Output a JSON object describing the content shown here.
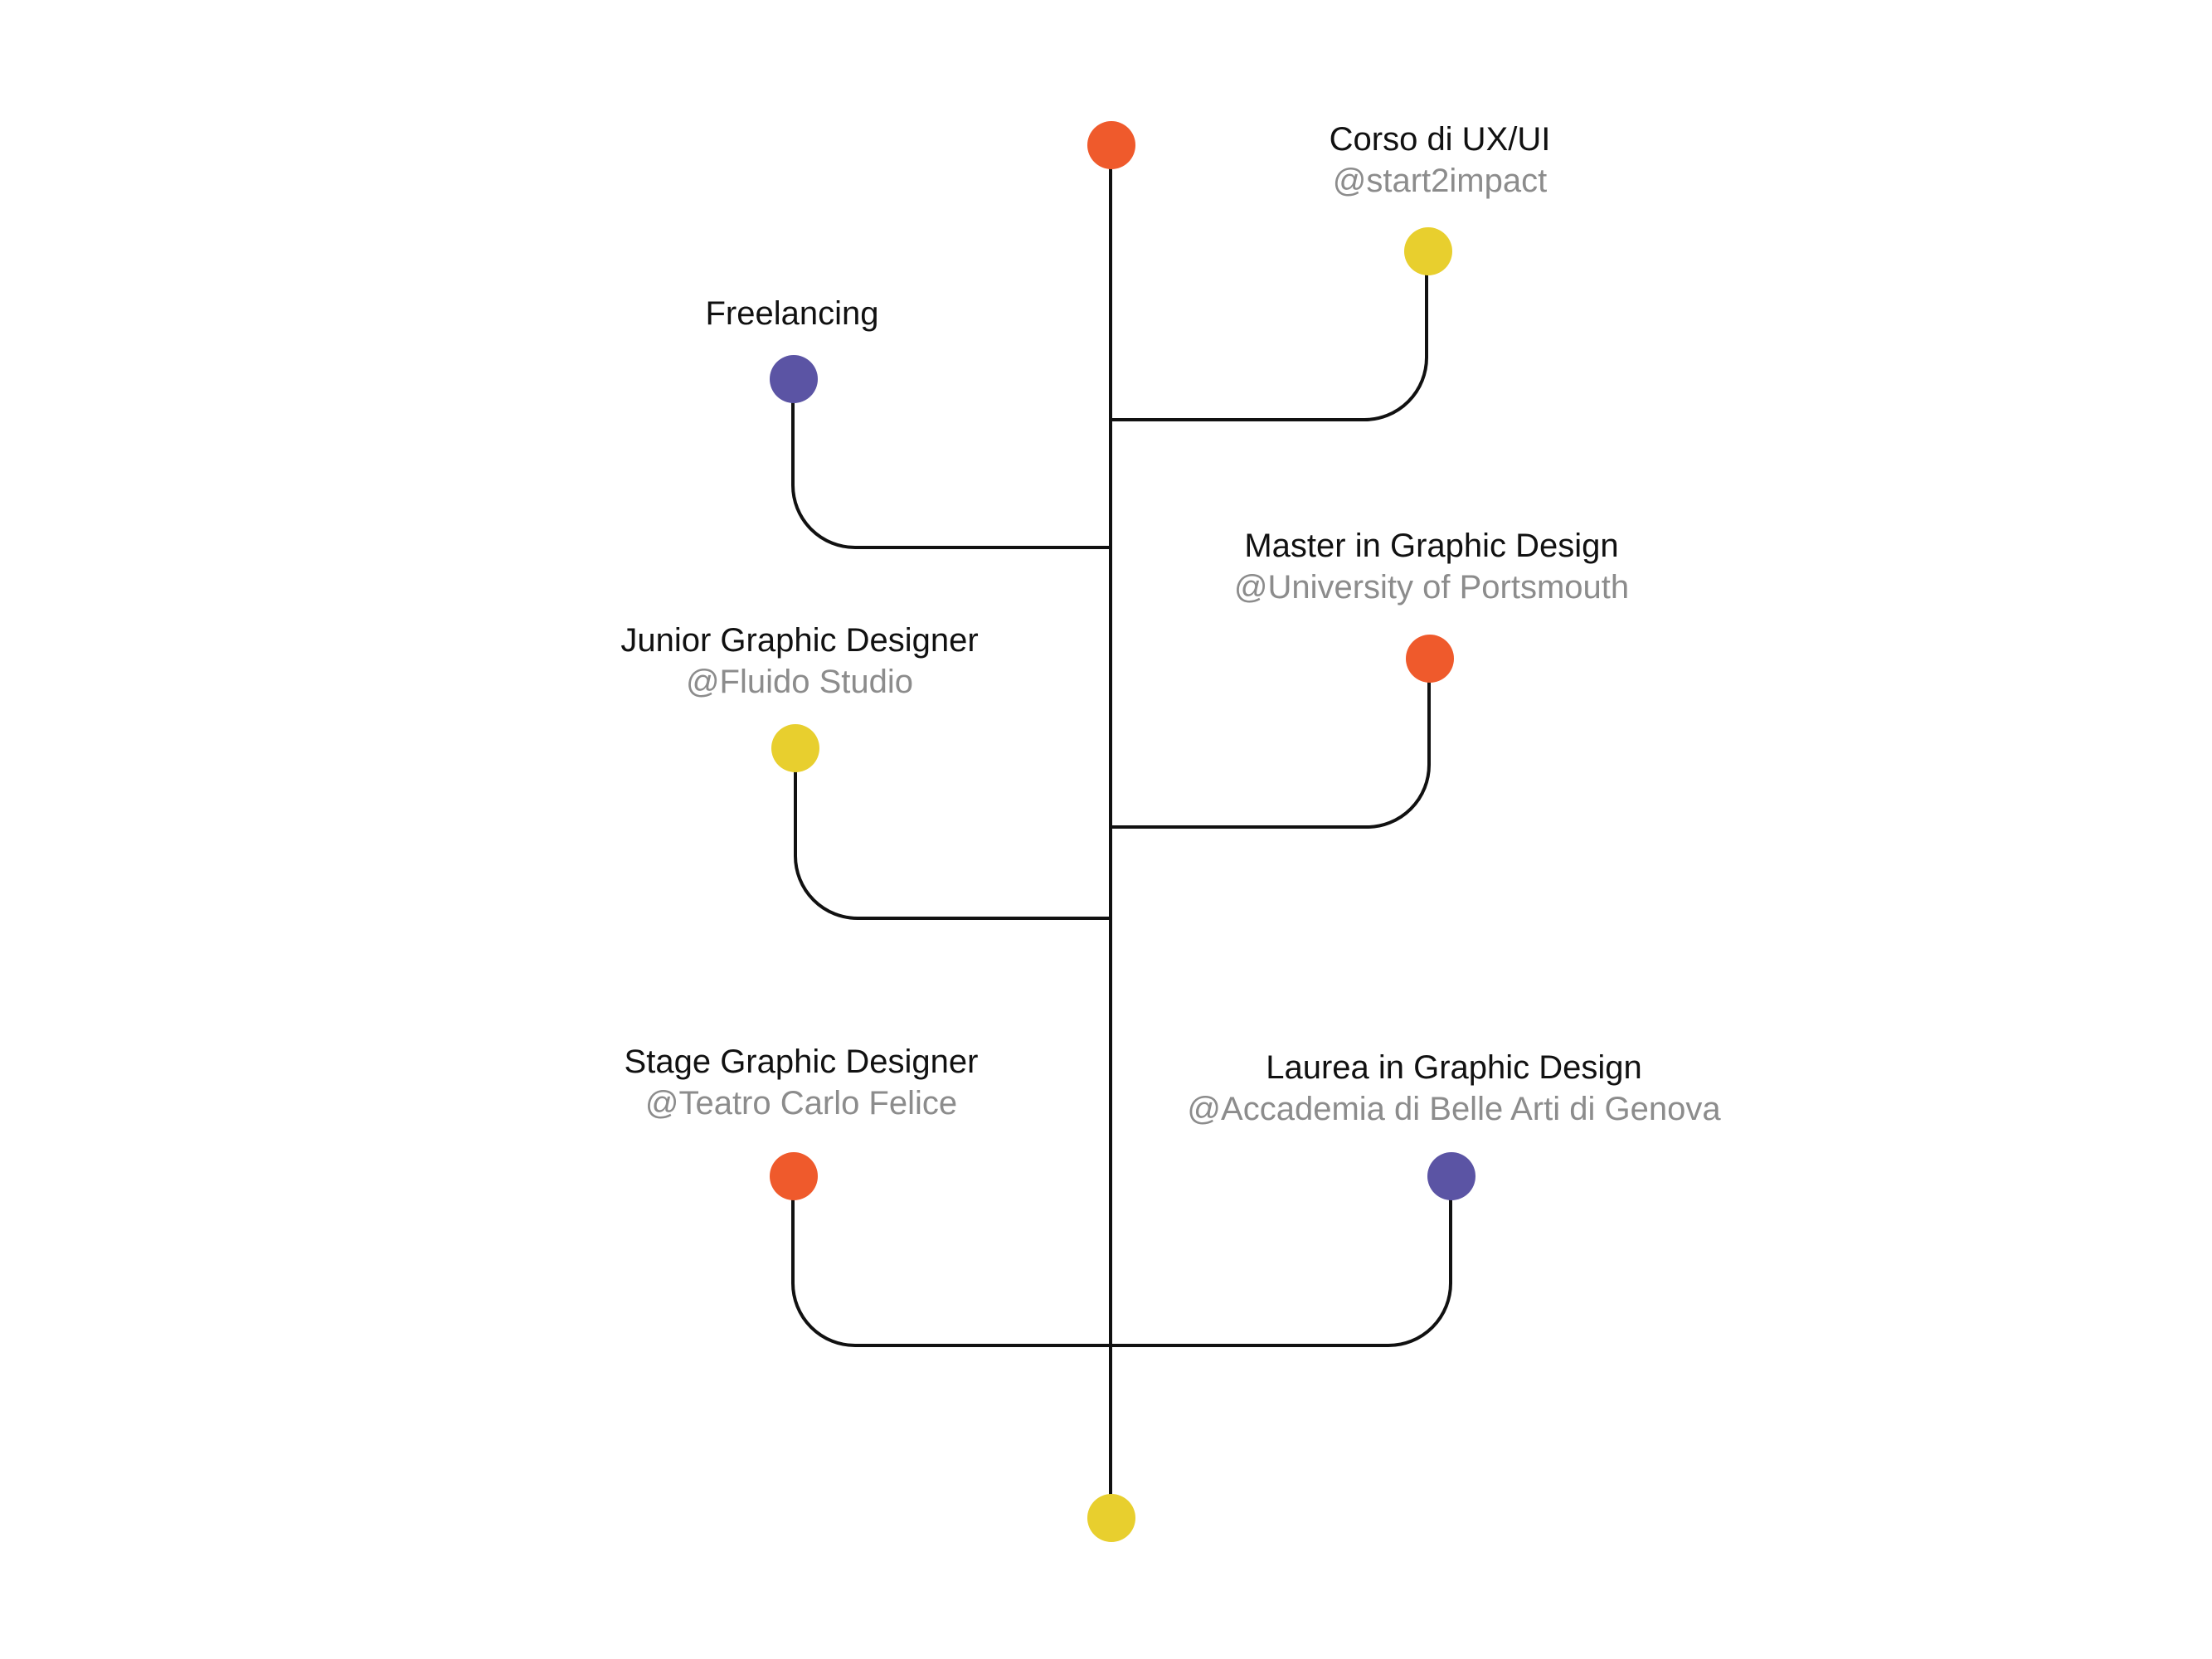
{
  "colors": {
    "orange": "#ef5a2c",
    "yellow": "#e8cf2e",
    "purple": "#5b54a4",
    "line": "#111111",
    "subtitle": "#8c8c8c"
  },
  "timeline": {
    "entries": [
      {
        "title": "Corso di UX/UI",
        "subtitle": "@start2impact",
        "side": "right",
        "color": "yellow"
      },
      {
        "title": "Freelancing",
        "subtitle": "",
        "side": "left",
        "color": "purple"
      },
      {
        "title": "Master in Graphic Design",
        "subtitle": "@University of Portsmouth",
        "side": "right",
        "color": "orange"
      },
      {
        "title": "Junior Graphic Designer",
        "subtitle": "@Fluido Studio",
        "side": "left",
        "color": "yellow"
      },
      {
        "title": "Stage Graphic Designer",
        "subtitle": "@Teatro Carlo Felice",
        "side": "left",
        "color": "orange"
      },
      {
        "title": "Laurea in Graphic Design",
        "subtitle": "@Accademia di Belle Arti di Genova",
        "side": "right",
        "color": "purple"
      }
    ],
    "top_dot_color": "orange",
    "bottom_dot_color": "yellow"
  }
}
